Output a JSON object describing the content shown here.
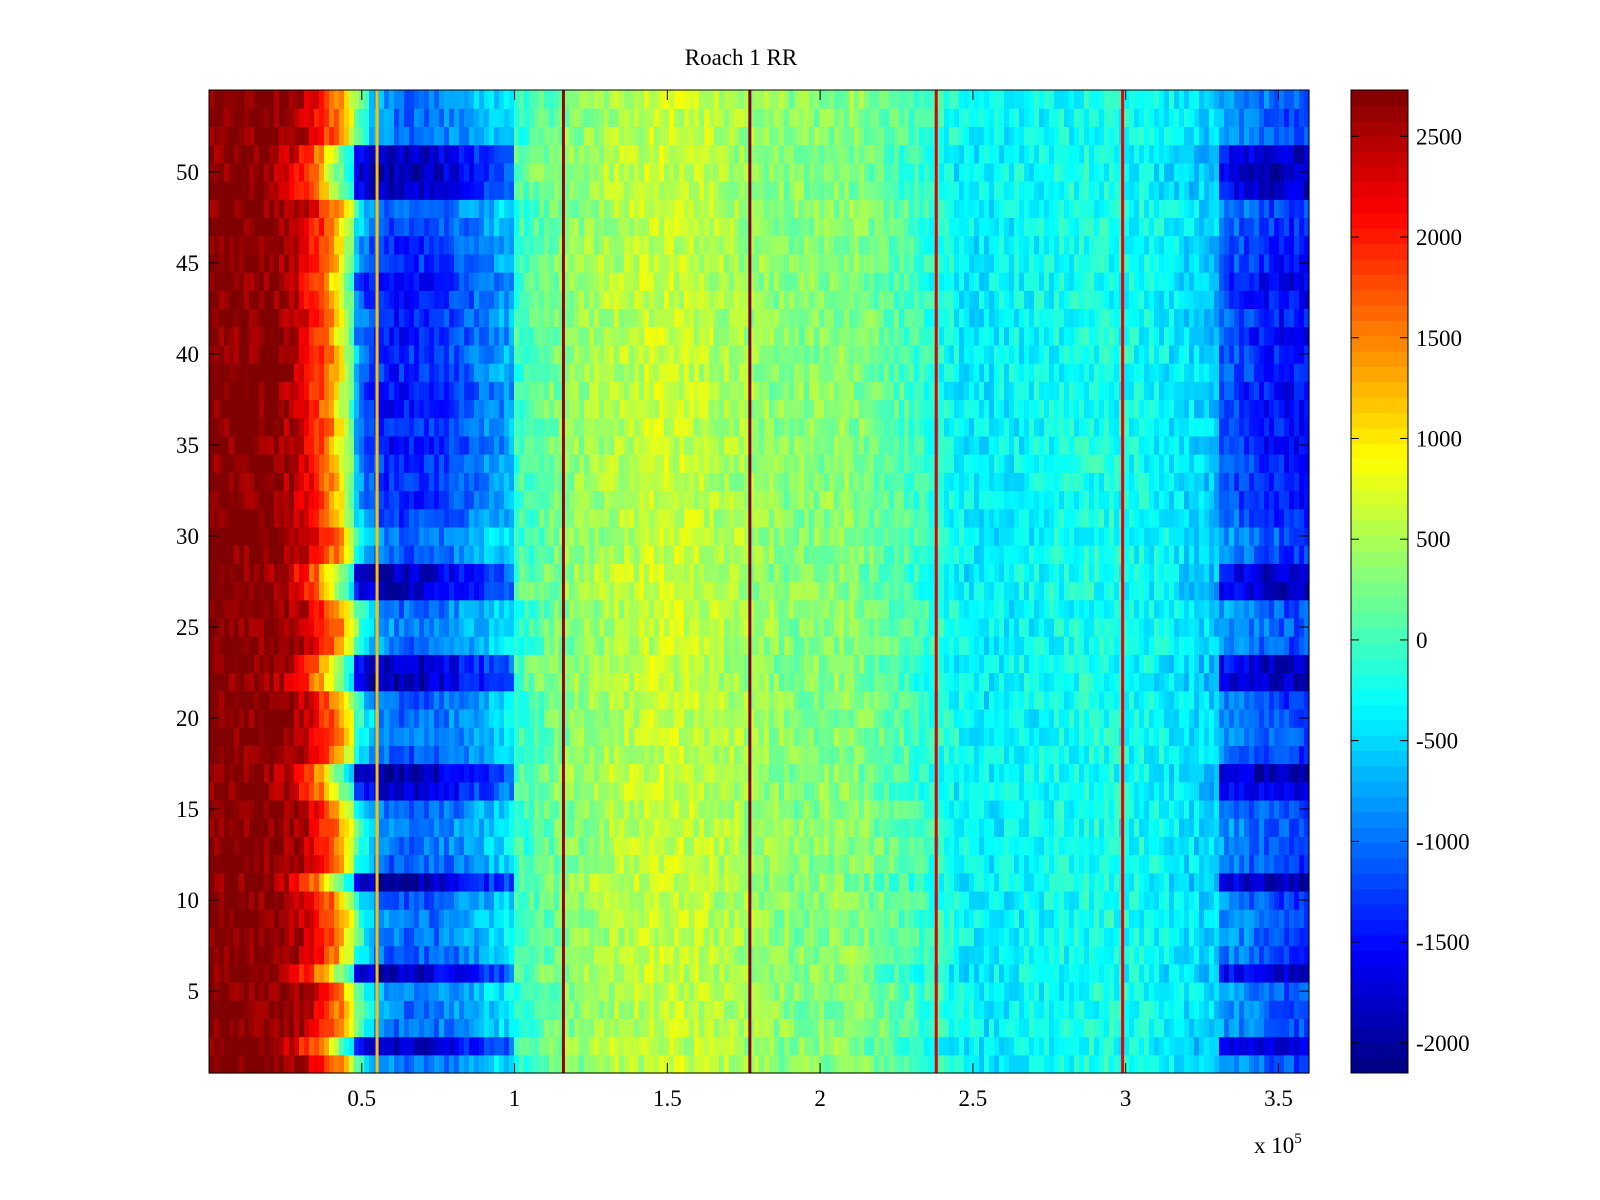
{
  "chart_data": {
    "type": "heatmap",
    "title": "Roach 1 RR",
    "xlabel": "",
    "ylabel": "",
    "x_exponent_label": {
      "base": "x 10",
      "exp": "5"
    },
    "xlim": [
      0,
      360000
    ],
    "ylim": [
      0.5,
      54.5
    ],
    "x_ticks": [
      {
        "value": 50000,
        "label": "0.5"
      },
      {
        "value": 100000,
        "label": "1"
      },
      {
        "value": 150000,
        "label": "1.5"
      },
      {
        "value": 200000,
        "label": "2"
      },
      {
        "value": 250000,
        "label": "2.5"
      },
      {
        "value": 300000,
        "label": "3"
      },
      {
        "value": 350000,
        "label": "3.5"
      }
    ],
    "y_ticks": [
      {
        "value": 5,
        "label": "5"
      },
      {
        "value": 10,
        "label": "10"
      },
      {
        "value": 15,
        "label": "15"
      },
      {
        "value": 20,
        "label": "20"
      },
      {
        "value": 25,
        "label": "25"
      },
      {
        "value": 30,
        "label": "30"
      },
      {
        "value": 35,
        "label": "35"
      },
      {
        "value": 40,
        "label": "40"
      },
      {
        "value": 45,
        "label": "45"
      },
      {
        "value": 50,
        "label": "50"
      }
    ],
    "colorbar": {
      "colormap": "jet",
      "clim": [
        -2150,
        2730
      ],
      "ticks": [
        {
          "value": 2500,
          "label": "2500"
        },
        {
          "value": 2000,
          "label": "2000"
        },
        {
          "value": 1500,
          "label": "1500"
        },
        {
          "value": 1000,
          "label": "1000"
        },
        {
          "value": 500,
          "label": "500"
        },
        {
          "value": 0,
          "label": "0"
        },
        {
          "value": -500,
          "label": "-500"
        },
        {
          "value": -1000,
          "label": "-1000"
        },
        {
          "value": -1500,
          "label": "-1500"
        },
        {
          "value": -2000,
          "label": "-2000"
        }
      ]
    },
    "profile_x": [
      0,
      20000,
      30000,
      40000,
      46000,
      52000,
      60000,
      75000,
      90000,
      110000,
      130000,
      150000,
      170000,
      190000,
      210000,
      230000,
      250000,
      270000,
      290000,
      310000,
      330000,
      340000,
      350000,
      360000
    ],
    "profile_base": [
      2730,
      2730,
      2400,
      1500,
      300,
      -500,
      -800,
      -700,
      -300,
      200,
      500,
      650,
      500,
      300,
      350,
      0,
      -400,
      -300,
      -200,
      -300,
      -600,
      -800,
      -1000,
      -1000
    ],
    "row_dip": [
      0.2,
      0.9,
      0.2,
      0.15,
      0.15,
      0.9,
      0.3,
      0.2,
      0.2,
      0.3,
      1.0,
      0.3,
      0.2,
      0.2,
      0.3,
      0.8,
      1.0,
      0.3,
      0.2,
      0.2,
      0.3,
      0.95,
      0.9,
      0.2,
      0.15,
      0.2,
      0.9,
      0.9,
      0.3,
      0.2,
      0.4,
      0.5,
      0.5,
      0.5,
      0.6,
      0.5,
      0.6,
      0.6,
      0.5,
      0.5,
      0.6,
      0.5,
      0.6,
      0.7,
      0.5,
      0.5,
      0.4,
      0.3,
      0.9,
      1.0,
      0.9,
      0.2,
      0.2,
      0.15
    ],
    "stripes": [
      {
        "x": 55000,
        "value": 1200
      },
      {
        "x": 116000,
        "value": 2600
      },
      {
        "x": 177000,
        "value": 2730
      },
      {
        "x": 238000,
        "value": 2300
      },
      {
        "x": 299000,
        "value": 2200
      }
    ]
  }
}
